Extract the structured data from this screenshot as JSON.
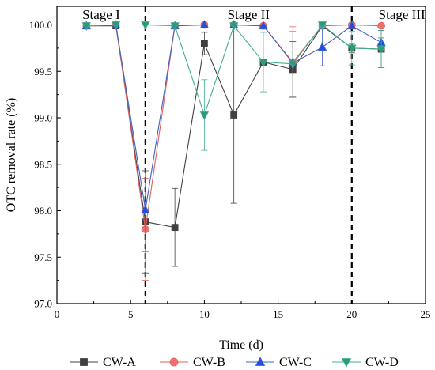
{
  "chart_data": {
    "type": "line",
    "xlabel": "Time (d)",
    "ylabel": "OTC removal rate (%)",
    "xlim": [
      0,
      25
    ],
    "ylim": [
      97.0,
      100.2
    ],
    "x_ticks": [
      0,
      5,
      10,
      15,
      20,
      25
    ],
    "y_ticks": [
      97.0,
      97.5,
      98.0,
      98.5,
      99.0,
      99.5,
      100.0
    ],
    "stage_dividers": [
      6,
      20
    ],
    "stages": [
      {
        "label": "Stage I",
        "x": 3.0
      },
      {
        "label": "Stage II",
        "x": 13.0
      },
      {
        "label": "Stage III",
        "x": 23.4
      }
    ],
    "legend_position": "bottom",
    "grid": false,
    "series": [
      {
        "name": "CW-A",
        "marker": "square",
        "color": "#404040",
        "marker_color": "#404040",
        "x": [
          2,
          4,
          6,
          8,
          10,
          12,
          14,
          16,
          18,
          20,
          22
        ],
        "y": [
          99.99,
          99.99,
          97.88,
          97.82,
          99.8,
          99.03,
          99.6,
          99.52,
          99.99,
          99.75,
          99.74
        ],
        "err": [
          0.0,
          0.0,
          0.55,
          0.42,
          0.12,
          0.95,
          0.02,
          0.3,
          0.0,
          0.05,
          0.2
        ]
      },
      {
        "name": "CW-B",
        "marker": "circle",
        "color": "#e06060",
        "marker_color": "#f07070",
        "x": [
          2,
          4,
          6,
          8,
          10,
          12,
          14,
          16,
          18,
          20,
          22
        ],
        "y": [
          99.99,
          100.0,
          97.8,
          99.99,
          100.0,
          100.0,
          99.99,
          99.6,
          99.99,
          100.0,
          99.99
        ],
        "err": [
          0.0,
          0.0,
          0.55,
          0.0,
          0.0,
          0.0,
          0.0,
          0.38,
          0.0,
          0.0,
          0.02
        ]
      },
      {
        "name": "CW-C",
        "marker": "triangle-up",
        "color": "#4060c0",
        "marker_color": "#2050e0",
        "x": [
          2,
          4,
          6,
          8,
          10,
          12,
          14,
          16,
          18,
          20,
          22
        ],
        "y": [
          99.99,
          100.0,
          98.01,
          99.99,
          100.0,
          100.0,
          99.99,
          99.59,
          99.76,
          99.99,
          99.81
        ],
        "err": [
          0.0,
          0.0,
          0.45,
          0.0,
          0.0,
          0.0,
          0.0,
          0.0,
          0.2,
          0.0,
          0.05
        ]
      },
      {
        "name": "CW-D",
        "marker": "triangle-down",
        "color": "#40b090",
        "marker_color": "#2a9a7a",
        "x": [
          2,
          4,
          6,
          8,
          10,
          12,
          14,
          16,
          18,
          20,
          22
        ],
        "y": [
          99.99,
          100.0,
          100.0,
          99.99,
          99.03,
          99.99,
          99.6,
          99.58,
          100.0,
          99.75,
          99.74
        ],
        "err": [
          0.0,
          0.0,
          0.0,
          0.0,
          0.38,
          0.0,
          0.32,
          0.35,
          0.0,
          0.18,
          0.2
        ]
      }
    ]
  }
}
